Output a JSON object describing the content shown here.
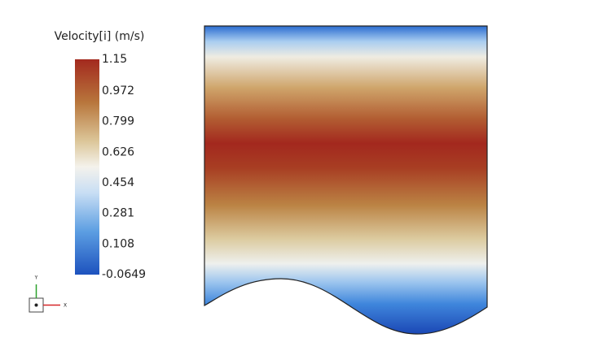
{
  "legend": {
    "title": "Velocity[i] (m/s)",
    "ticks": [
      1.15,
      0.972,
      0.799,
      0.626,
      0.454,
      0.281,
      0.108,
      -0.0649
    ]
  },
  "triad": {
    "y": "Y",
    "x": "X"
  }
}
